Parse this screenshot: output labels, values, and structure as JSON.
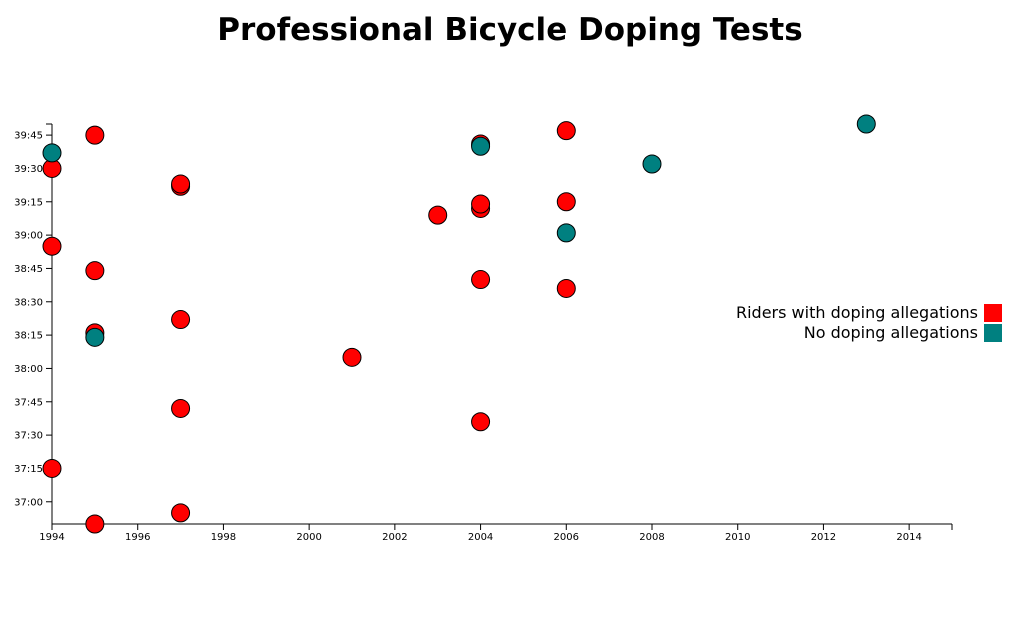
{
  "chart_data": {
    "type": "scatter",
    "title": "Professional Bicycle Doping Tests",
    "xlabel": "",
    "ylabel": "",
    "xlim": [
      1994,
      2015
    ],
    "ylim": [
      "36:50",
      "39:50"
    ],
    "x_ticks": [
      "1994",
      "1996",
      "1998",
      "2000",
      "2002",
      "2004",
      "2006",
      "2008",
      "2010",
      "2012",
      "2014"
    ],
    "y_ticks": [
      "37:00",
      "37:15",
      "37:30",
      "37:45",
      "38:00",
      "38:15",
      "38:30",
      "38:45",
      "39:00",
      "39:15",
      "39:30",
      "39:45"
    ],
    "legend_position": "right",
    "series": [
      {
        "name": "Riders with doping allegations",
        "color": "#ff0000",
        "points": [
          {
            "x": 1995,
            "y": "36:50"
          },
          {
            "x": 1997,
            "y": "36:55"
          },
          {
            "x": 1994,
            "y": "37:15"
          },
          {
            "x": 2004,
            "y": "37:36"
          },
          {
            "x": 1997,
            "y": "37:42"
          },
          {
            "x": 2001,
            "y": "38:05"
          },
          {
            "x": 1995,
            "y": "38:16"
          },
          {
            "x": 1997,
            "y": "38:22"
          },
          {
            "x": 2006,
            "y": "38:36"
          },
          {
            "x": 2004,
            "y": "38:40"
          },
          {
            "x": 1995,
            "y": "38:44"
          },
          {
            "x": 1994,
            "y": "38:55"
          },
          {
            "x": 2003,
            "y": "39:09"
          },
          {
            "x": 2004,
            "y": "39:12"
          },
          {
            "x": 2004,
            "y": "39:14"
          },
          {
            "x": 2006,
            "y": "39:15"
          },
          {
            "x": 1997,
            "y": "39:22"
          },
          {
            "x": 1997,
            "y": "39:23"
          },
          {
            "x": 1994,
            "y": "39:30"
          },
          {
            "x": 2004,
            "y": "39:41"
          },
          {
            "x": 1995,
            "y": "39:45"
          },
          {
            "x": 2006,
            "y": "39:47"
          }
        ]
      },
      {
        "name": "No doping allegations",
        "color": "#008080",
        "points": [
          {
            "x": 1995,
            "y": "38:14"
          },
          {
            "x": 2006,
            "y": "39:01"
          },
          {
            "x": 2008,
            "y": "39:32"
          },
          {
            "x": 1994,
            "y": "39:37"
          },
          {
            "x": 2004,
            "y": "39:40"
          },
          {
            "x": 2013,
            "y": "39:50"
          }
        ]
      }
    ]
  }
}
